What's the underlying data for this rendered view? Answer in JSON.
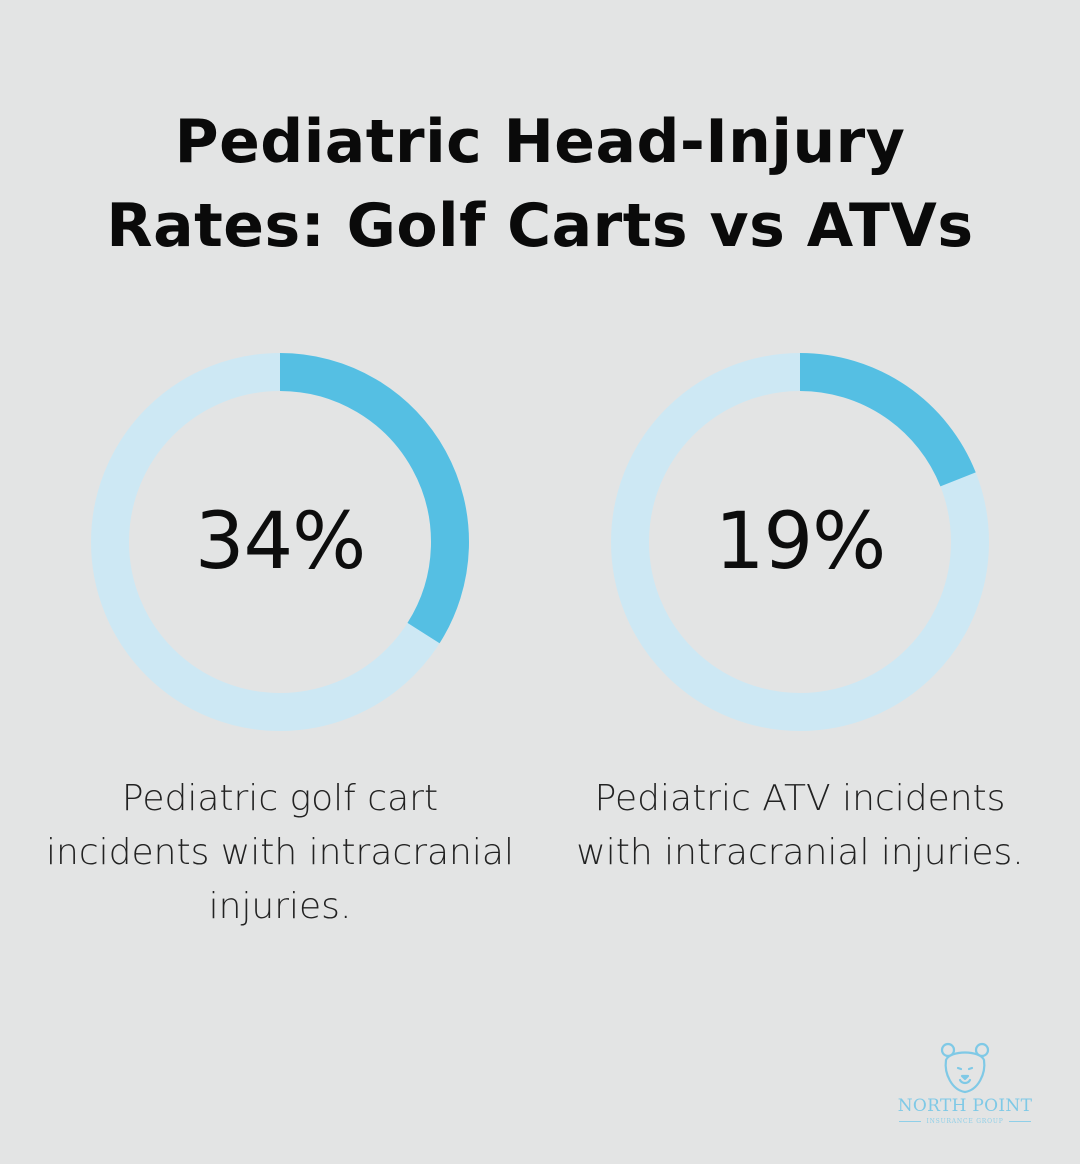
{
  "title": {
    "line1": "Pediatric Head-Injury",
    "line2": "Rates: Golf Carts vs ATVs"
  },
  "colors": {
    "background": "#e3e4e4",
    "track": "#cde8f4",
    "fill": "#55bfe3",
    "logo": "#7fc9e6"
  },
  "chart_data": [
    {
      "type": "pie",
      "title": "",
      "categories": [
        "Pediatric golf cart incidents with intracranial injuries.",
        ""
      ],
      "values": [
        34,
        66
      ],
      "label": "34%"
    },
    {
      "type": "pie",
      "title": "",
      "categories": [
        "Pediatric ATV incidents with intracranial injuries.",
        ""
      ],
      "values": [
        19,
        81
      ],
      "label": "19%"
    }
  ],
  "captions": {
    "left": "Pediatric golf cart incidents with intracranial injuries.",
    "right": "Pediatric ATV incidents with intracranial injuries."
  },
  "logo": {
    "name": "NORTH POINT",
    "subtitle": "INSURANCE GROUP",
    "icon": "bear-icon"
  }
}
